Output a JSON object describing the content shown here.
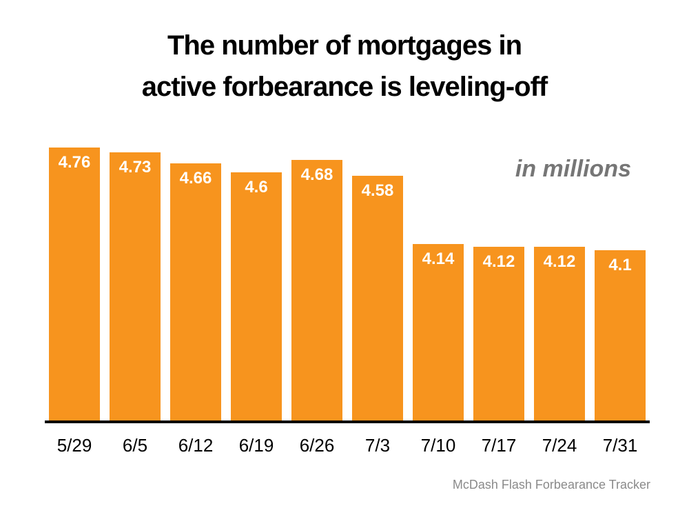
{
  "title": {
    "line1": "The number of mortgages in",
    "line2": "active forbearance is leveling-off"
  },
  "annotation": "in millions",
  "source": "McDash Flash Forbearance Tracker",
  "colors": {
    "bar": "#F7941E",
    "title": "#000000",
    "bar_value_label": "#FFFFFF",
    "annotation": "#767676",
    "source": "#8A8A8A",
    "axis": "#000000",
    "background": "#FFFFFF"
  },
  "chart_data": {
    "type": "bar",
    "title": "The number of mortgages in active forbearance is leveling-off",
    "categories": [
      "5/29",
      "6/5",
      "6/12",
      "6/19",
      "6/26",
      "7/3",
      "7/10",
      "7/17",
      "7/24",
      "7/31"
    ],
    "values": [
      4.76,
      4.73,
      4.66,
      4.6,
      4.68,
      4.58,
      4.14,
      4.12,
      4.12,
      4.1
    ],
    "xlabel": "",
    "ylabel": "",
    "unit_note": "in millions",
    "ylim": [
      3.0,
      4.8
    ],
    "grid": false,
    "legend_position": "none",
    "data_labels": "inside-top, white bold",
    "source": "McDash Flash Forbearance Tracker"
  }
}
